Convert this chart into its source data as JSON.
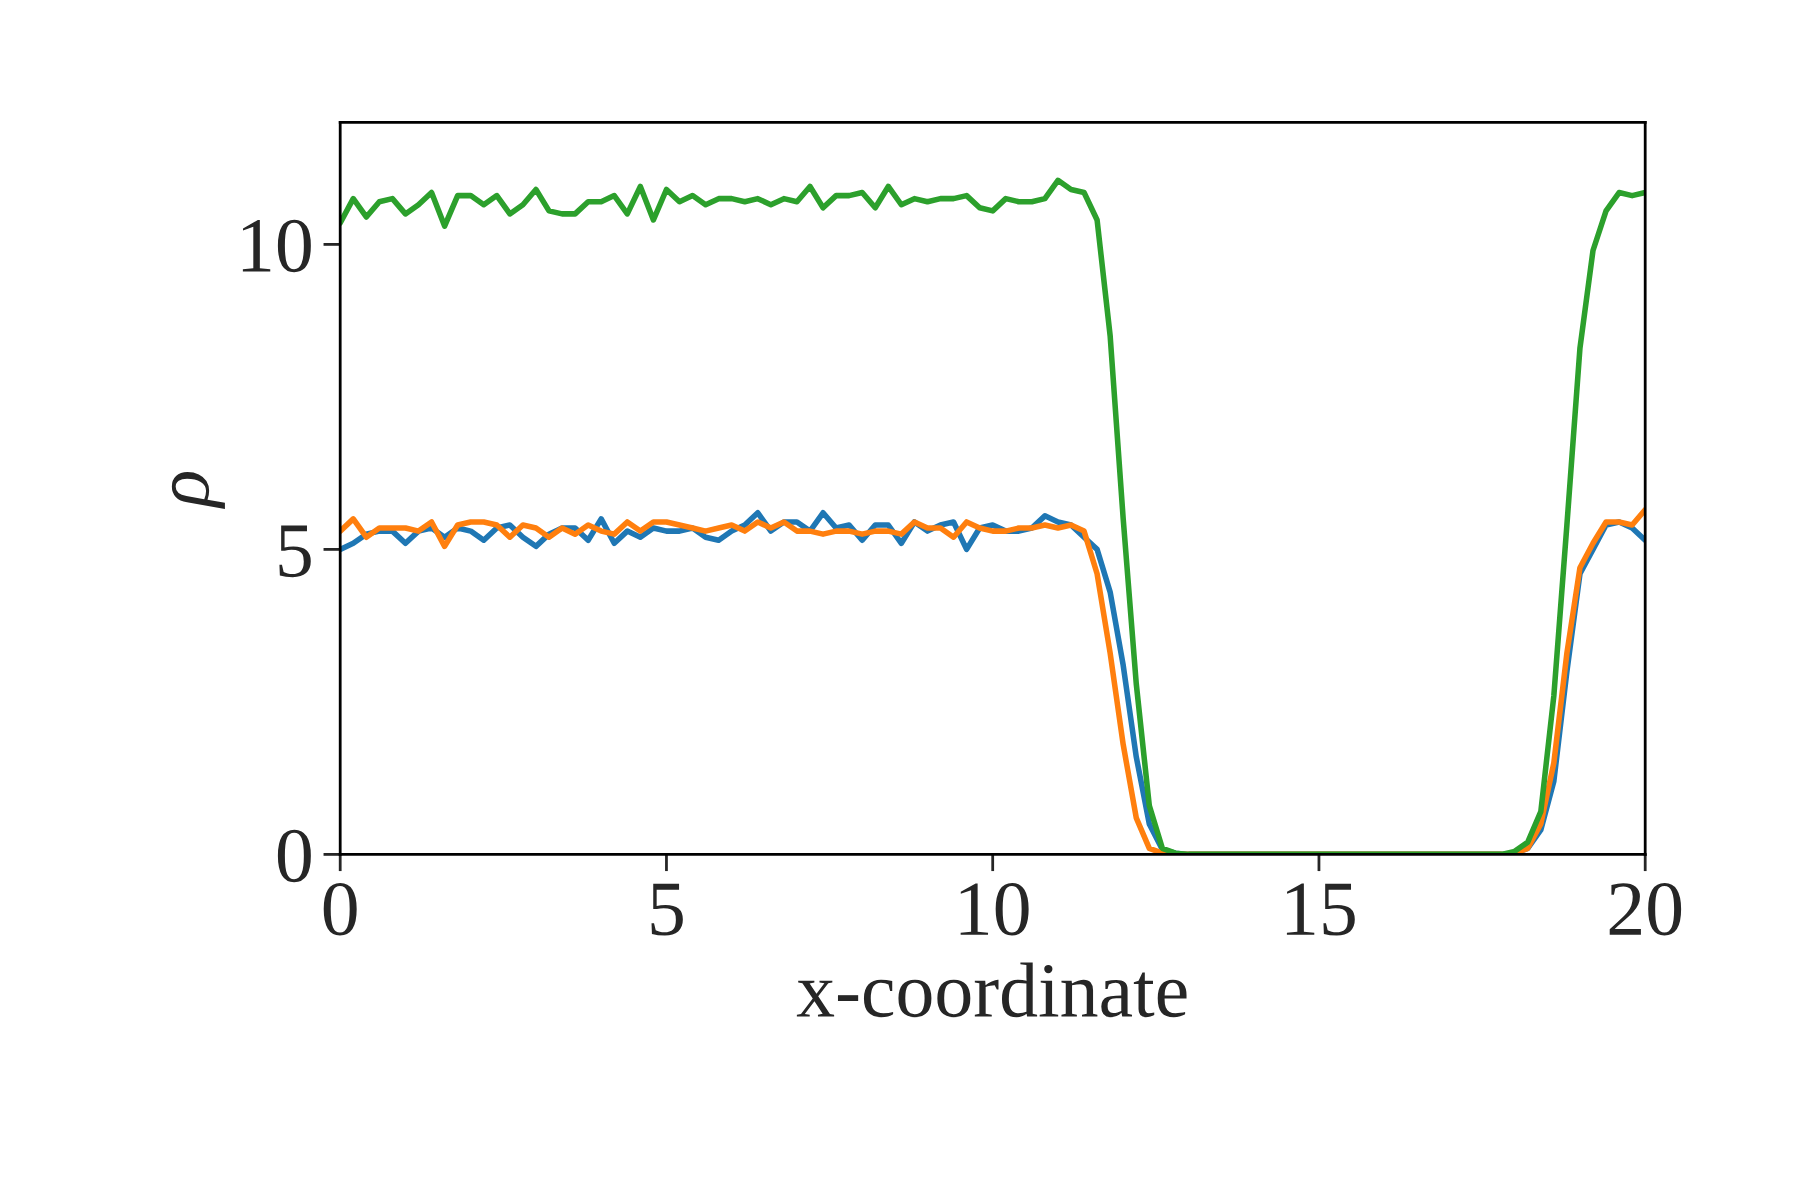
{
  "chart_data": {
    "type": "line",
    "xlabel": "x-coordinate",
    "ylabel": "ρ",
    "x": [
      0,
      0.2,
      0.4,
      0.6,
      0.8,
      1,
      1.2,
      1.4,
      1.6,
      1.8,
      2,
      2.2,
      2.4,
      2.6,
      2.8,
      3,
      3.2,
      3.4,
      3.6,
      3.8,
      4,
      4.2,
      4.4,
      4.6,
      4.8,
      5,
      5.2,
      5.4,
      5.6,
      5.8,
      6,
      6.2,
      6.4,
      6.6,
      6.8,
      7,
      7.2,
      7.4,
      7.6,
      7.8,
      8,
      8.2,
      8.4,
      8.6,
      8.8,
      9,
      9.2,
      9.4,
      9.6,
      9.8,
      10,
      10.2,
      10.4,
      10.6,
      10.8,
      11,
      11.2,
      11.4,
      11.6,
      11.8,
      12,
      12.2,
      12.4,
      12.6,
      12.8,
      13,
      13.2,
      13.4,
      13.6,
      13.8,
      14,
      14.2,
      14.4,
      14.6,
      14.8,
      15,
      15.2,
      15.4,
      15.6,
      15.8,
      16,
      16.2,
      16.4,
      16.6,
      16.8,
      17,
      17.2,
      17.4,
      17.6,
      17.8,
      18,
      18.2,
      18.4,
      18.6,
      18.8,
      19,
      19.2,
      19.4,
      19.6,
      19.8,
      20
    ],
    "series": [
      {
        "color": "#1f77b4",
        "values": [
          5.0,
          5.1,
          5.25,
          5.3,
          5.3,
          5.1,
          5.3,
          5.35,
          5.2,
          5.35,
          5.3,
          5.15,
          5.35,
          5.4,
          5.2,
          5.05,
          5.25,
          5.35,
          5.35,
          5.15,
          5.5,
          5.1,
          5.3,
          5.2,
          5.35,
          5.3,
          5.3,
          5.35,
          5.2,
          5.15,
          5.3,
          5.4,
          5.6,
          5.3,
          5.45,
          5.45,
          5.3,
          5.6,
          5.35,
          5.4,
          5.15,
          5.4,
          5.4,
          5.1,
          5.45,
          5.3,
          5.4,
          5.45,
          5.0,
          5.35,
          5.4,
          5.3,
          5.3,
          5.35,
          5.55,
          5.45,
          5.4,
          5.2,
          5.0,
          4.3,
          3.1,
          1.6,
          0.5,
          0.08,
          0.02,
          0,
          0,
          0,
          0,
          0,
          0,
          0,
          0,
          0,
          0,
          0,
          0,
          0,
          0,
          0,
          0,
          0,
          0,
          0,
          0,
          0,
          0,
          0,
          0,
          0,
          0.02,
          0.1,
          0.4,
          1.2,
          3.0,
          4.6,
          5.0,
          5.4,
          5.45,
          5.35,
          5.15
        ]
      },
      {
        "color": "#ff7f0e",
        "values": [
          5.3,
          5.5,
          5.2,
          5.35,
          5.35,
          5.35,
          5.3,
          5.45,
          5.05,
          5.4,
          5.45,
          5.45,
          5.4,
          5.2,
          5.4,
          5.35,
          5.2,
          5.35,
          5.25,
          5.4,
          5.3,
          5.25,
          5.45,
          5.3,
          5.45,
          5.45,
          5.4,
          5.35,
          5.3,
          5.35,
          5.4,
          5.3,
          5.45,
          5.35,
          5.45,
          5.3,
          5.3,
          5.25,
          5.3,
          5.3,
          5.25,
          5.3,
          5.3,
          5.25,
          5.45,
          5.35,
          5.35,
          5.2,
          5.45,
          5.35,
          5.3,
          5.3,
          5.35,
          5.35,
          5.4,
          5.35,
          5.4,
          5.3,
          4.6,
          3.3,
          1.8,
          0.6,
          0.1,
          0.02,
          0,
          0,
          0,
          0,
          0,
          0,
          0,
          0,
          0,
          0,
          0,
          0,
          0,
          0,
          0,
          0,
          0,
          0,
          0,
          0,
          0,
          0,
          0,
          0,
          0,
          0,
          0.02,
          0.1,
          0.5,
          1.5,
          3.3,
          4.7,
          5.1,
          5.45,
          5.45,
          5.4,
          5.65
        ]
      },
      {
        "color": "#2ca02c",
        "values": [
          10.35,
          10.75,
          10.45,
          10.7,
          10.75,
          10.5,
          10.65,
          10.85,
          10.3,
          10.8,
          10.8,
          10.65,
          10.8,
          10.5,
          10.65,
          10.9,
          10.55,
          10.5,
          10.5,
          10.7,
          10.7,
          10.8,
          10.5,
          10.95,
          10.4,
          10.9,
          10.7,
          10.8,
          10.65,
          10.75,
          10.75,
          10.7,
          10.75,
          10.65,
          10.75,
          10.7,
          10.95,
          10.6,
          10.8,
          10.8,
          10.85,
          10.6,
          10.95,
          10.65,
          10.75,
          10.7,
          10.75,
          10.75,
          10.8,
          10.6,
          10.55,
          10.75,
          10.7,
          10.7,
          10.75,
          11.05,
          10.9,
          10.85,
          10.4,
          8.5,
          5.5,
          2.8,
          0.8,
          0.1,
          0.02,
          0,
          0,
          0,
          0,
          0,
          0,
          0,
          0,
          0,
          0,
          0,
          0,
          0,
          0,
          0,
          0,
          0,
          0,
          0,
          0,
          0,
          0,
          0,
          0,
          0,
          0.05,
          0.2,
          0.7,
          2.6,
          5.4,
          8.3,
          9.9,
          10.55,
          10.85,
          10.8,
          10.85
        ]
      }
    ],
    "xlim": [
      0,
      20
    ],
    "xticks": [
      0,
      5,
      10,
      15,
      20
    ],
    "ylim": [
      0,
      12
    ],
    "yticks": [
      0,
      5,
      10
    ],
    "marker": "none",
    "line_style": "solid"
  }
}
